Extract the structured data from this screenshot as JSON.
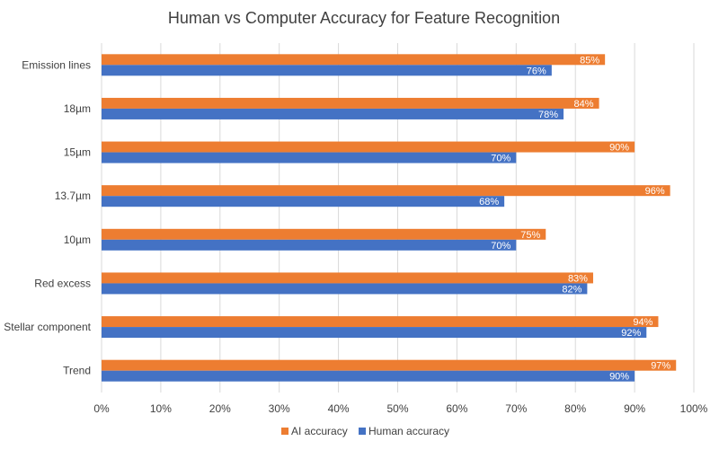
{
  "chart_data": {
    "type": "bar",
    "orientation": "horizontal",
    "title": "Human vs Computer Accuracy for Feature Recognition",
    "xlabel": "",
    "ylabel": "",
    "categories": [
      "Emission lines",
      "18µm",
      "15µm",
      "13.7µm",
      "10µm",
      "Red excess",
      "Stellar component",
      "Trend"
    ],
    "series": [
      {
        "name": "AI accuracy",
        "color": "#ED7D31",
        "values": [
          85,
          84,
          90,
          96,
          75,
          83,
          94,
          97
        ],
        "labels": [
          "85%",
          "84%",
          "90%",
          "96%",
          "75%",
          "83%",
          "94%",
          "97%"
        ]
      },
      {
        "name": "Human accuracy",
        "color": "#4472C4",
        "values": [
          76,
          78,
          70,
          68,
          70,
          82,
          92,
          90
        ],
        "labels": [
          "76%",
          "78%",
          "70%",
          "68%",
          "70%",
          "82%",
          "92%",
          "90%"
        ]
      }
    ],
    "xlim": [
      0,
      100
    ],
    "xticks": [
      "0%",
      "10%",
      "20%",
      "30%",
      "40%",
      "50%",
      "60%",
      "70%",
      "80%",
      "90%",
      "100%"
    ],
    "grid": true,
    "legend": "bottom"
  }
}
